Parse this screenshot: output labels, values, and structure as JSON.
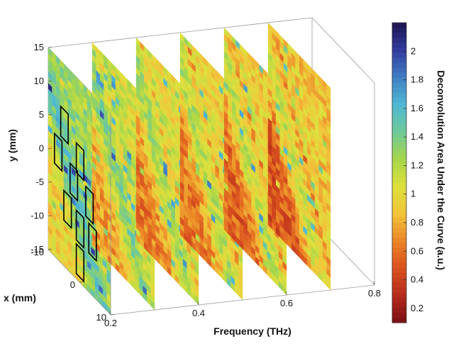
{
  "chart_data": {
    "type": "heatmap",
    "xlabel": "Frequency (THz)",
    "ylabel": "y (mm)",
    "zlabel": "x (mm)",
    "colorbar_label": "Deconvolution Area Under the Curve (a.u.)",
    "frequency_ticks": [
      "0.2",
      "0.4",
      "0.6",
      "0.8"
    ],
    "y_ticks": [
      "15",
      "10",
      "5",
      "0",
      "-5",
      "-10",
      "-15"
    ],
    "x_ticks": [
      "-10",
      "0",
      "10"
    ],
    "colorbar_ticks": [
      "2",
      "1.8",
      "1.6",
      "1.4",
      "1.2",
      "1",
      "0.8",
      "0.6",
      "0.4",
      "0.2"
    ],
    "frequency_range": [
      0.2,
      0.8
    ],
    "y_range": [
      -15,
      15
    ],
    "x_range": [
      -10,
      10
    ],
    "colorbar_range": [
      0.1,
      2.2
    ],
    "slices_frequency_thz": [
      0.2,
      0.3,
      0.4,
      0.5,
      0.6,
      0.7
    ],
    "slice_mean_values": [
      0.95,
      0.75,
      0.65,
      0.6,
      0.55,
      0.5
    ],
    "highlighted_regions_count": 9,
    "grid": false,
    "colormap": [
      "#7a0f14",
      "#b52b1c",
      "#d9501e",
      "#eb8526",
      "#f2c43a",
      "#dde03c",
      "#a6d64a",
      "#6ec99a",
      "#4fb8d3",
      "#3f7ec4",
      "#333a9e",
      "#1c1550"
    ]
  }
}
